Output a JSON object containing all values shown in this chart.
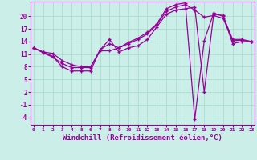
{
  "bg_color": "#cceee8",
  "grid_color": "#aaddcc",
  "line_color": "#990099",
  "xlabel": "Windchill (Refroidissement éolien,°C)",
  "xtick_labels": [
    "0",
    "1",
    "2",
    "3",
    "4",
    "5",
    "6",
    "7",
    "8",
    "9",
    "10",
    "11",
    "12",
    "13",
    "14",
    "15",
    "16",
    "17",
    "18",
    "19",
    "20",
    "21",
    "22",
    "23"
  ],
  "ytick_vals": [
    -4,
    -1,
    2,
    5,
    8,
    11,
    14,
    17,
    20
  ],
  "ytick_labels": [
    "-4",
    "-1",
    "2",
    "5",
    "8",
    "11",
    "14",
    "17",
    "20"
  ],
  "ylim": [
    -5.8,
    23.5
  ],
  "xlim": [
    -0.3,
    23.3
  ],
  "series": [
    [
      12.5,
      11.5,
      10.5,
      8.0,
      7.0,
      7.0,
      7.0,
      12.0,
      14.5,
      11.5,
      12.5,
      13.0,
      14.5,
      17.5,
      20.5,
      21.5,
      21.8,
      22.2,
      2.0,
      20.5,
      20.2,
      13.5,
      14.0,
      14.0
    ],
    [
      12.5,
      11.3,
      10.3,
      8.8,
      7.8,
      7.8,
      7.8,
      12.0,
      13.5,
      12.5,
      13.5,
      14.5,
      15.8,
      18.0,
      21.2,
      22.2,
      22.8,
      21.5,
      19.8,
      20.2,
      19.5,
      14.2,
      14.3,
      14.0
    ],
    [
      12.5,
      11.5,
      11.2,
      9.5,
      8.5,
      8.0,
      8.0,
      11.8,
      11.8,
      12.5,
      13.8,
      14.8,
      16.2,
      18.2,
      21.8,
      22.8,
      23.2,
      -4.5,
      14.2,
      20.8,
      20.0,
      14.5,
      14.5,
      14.0
    ]
  ]
}
